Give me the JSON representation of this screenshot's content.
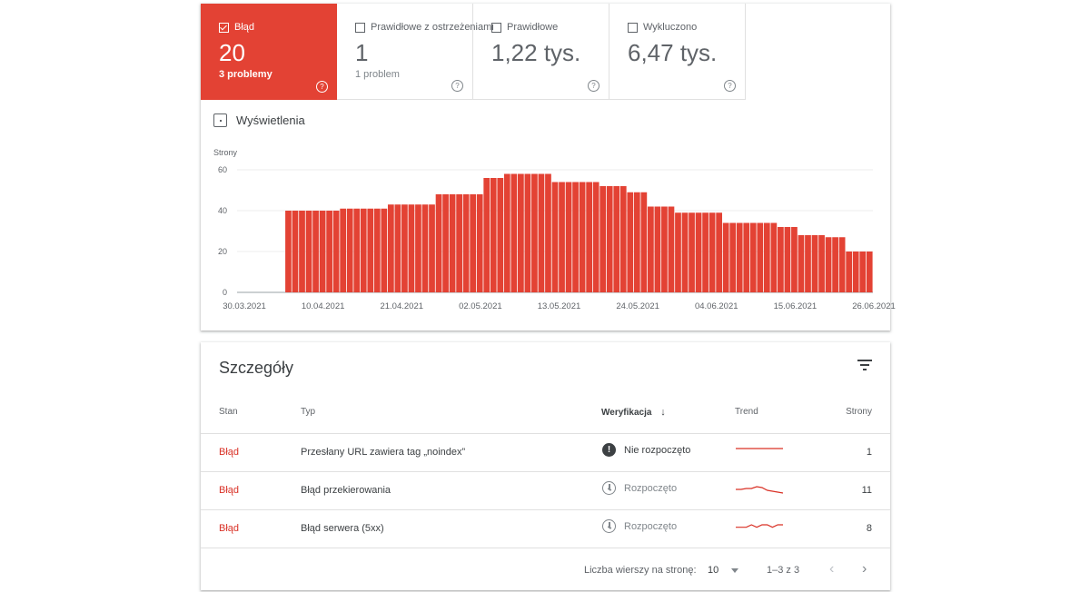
{
  "tiles": [
    {
      "label": "Błąd",
      "value": "20",
      "sub": "3 problemy",
      "checked": true
    },
    {
      "label": "Prawidłowe z ostrzeżeniami",
      "value": "1",
      "sub": "1 problem",
      "checked": false
    },
    {
      "label": "Prawidłowe",
      "value": "1,22 tys.",
      "sub": "",
      "checked": false
    },
    {
      "label": "Wykluczono",
      "value": "6,47 tys.",
      "sub": "",
      "checked": false
    }
  ],
  "impressions_label": "Wyświetlenia",
  "chart_data": {
    "type": "bar",
    "ylabel": "Strony",
    "ylim": [
      0,
      60
    ],
    "yticks": [
      0,
      20,
      40,
      60
    ],
    "xticks": [
      "30.03.2021",
      "10.04.2021",
      "21.04.2021",
      "02.05.2021",
      "13.05.2021",
      "24.05.2021",
      "04.06.2021",
      "15.06.2021",
      "26.06.2021"
    ],
    "x_start": "30.03.2021",
    "color": "#e34234",
    "values": [
      null,
      null,
      null,
      null,
      null,
      null,
      null,
      40,
      40,
      40,
      40,
      40,
      40,
      40,
      40,
      41,
      41,
      41,
      41,
      41,
      41,
      41,
      43,
      43,
      43,
      43,
      43,
      43,
      43,
      48,
      48,
      48,
      48,
      48,
      48,
      48,
      56,
      56,
      56,
      58,
      58,
      58,
      58,
      58,
      58,
      58,
      54,
      54,
      54,
      54,
      54,
      54,
      54,
      52,
      52,
      52,
      52,
      49,
      49,
      49,
      42,
      42,
      42,
      42,
      39,
      39,
      39,
      39,
      39,
      39,
      39,
      34,
      34,
      34,
      34,
      34,
      34,
      34,
      34,
      32,
      32,
      32,
      28,
      28,
      28,
      28,
      27,
      27,
      27,
      20,
      20,
      20,
      20
    ]
  },
  "details": {
    "title": "Szczegóły",
    "columns": {
      "stan": "Stan",
      "typ": "Typ",
      "weryfikacja": "Weryfikacja",
      "trend": "Trend",
      "strony": "Strony"
    },
    "rows": [
      {
        "stan": "Błąd",
        "typ": "Przesłany URL zawiera tag „noindex”",
        "weryfikacja": "Nie rozpoczęto",
        "status_icon": "warning-icon",
        "strony": "1",
        "trend": [
          1,
          1,
          1,
          1,
          1,
          1,
          1,
          1,
          1,
          1
        ]
      },
      {
        "stan": "Błąd",
        "typ": "Błąd przekierowania",
        "weryfikacja": "Rozpoczęto",
        "status_icon": "clock-icon",
        "strony": "11",
        "trend": [
          5,
          5,
          6,
          6,
          8,
          7,
          4,
          3,
          2,
          1
        ]
      },
      {
        "stan": "Błąd",
        "typ": "Błąd serwera (5xx)",
        "weryfikacja": "Rozpoczęto",
        "status_icon": "clock-icon",
        "strony": "8",
        "trend": [
          2,
          2,
          2,
          3,
          2,
          3,
          3,
          2,
          3,
          3
        ]
      }
    ],
    "footer": {
      "rows_per_page_label": "Liczba wierszy na stronę:",
      "rows_per_page": "10",
      "range": "1–3 z 3"
    }
  }
}
